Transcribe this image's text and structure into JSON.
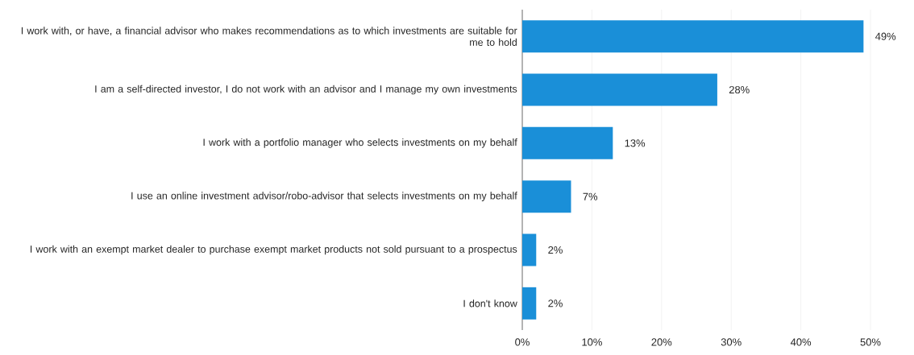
{
  "chart_data": {
    "type": "bar",
    "orientation": "horizontal",
    "categories": [
      "I work with, or have, a financial advisor who makes recommendations as to which investments are suitable for me to hold",
      "I am a self-directed investor, I do not work with an advisor and I manage my own investments",
      "I work with a portfolio manager who selects investments on my behalf",
      "I use an online investment advisor/robo-advisor that selects investments on my behalf",
      "I work with an exempt market dealer to purchase exempt market products not sold pursuant to a prospectus",
      "I don't know"
    ],
    "values": [
      49,
      28,
      13,
      7,
      2,
      2
    ],
    "value_labels": [
      "49%",
      "28%",
      "13%",
      "7%",
      "2%",
      "2%"
    ],
    "color": "#1a8fd8",
    "xlim": [
      0,
      50
    ],
    "xticks": [
      {
        "value": 0,
        "label": "0%"
      },
      {
        "value": 10,
        "label": "10%"
      },
      {
        "value": 20,
        "label": "20%"
      },
      {
        "value": 30,
        "label": "30%"
      },
      {
        "value": 40,
        "label": "40%"
      },
      {
        "value": 50,
        "label": "50%"
      }
    ],
    "grid": "x"
  }
}
